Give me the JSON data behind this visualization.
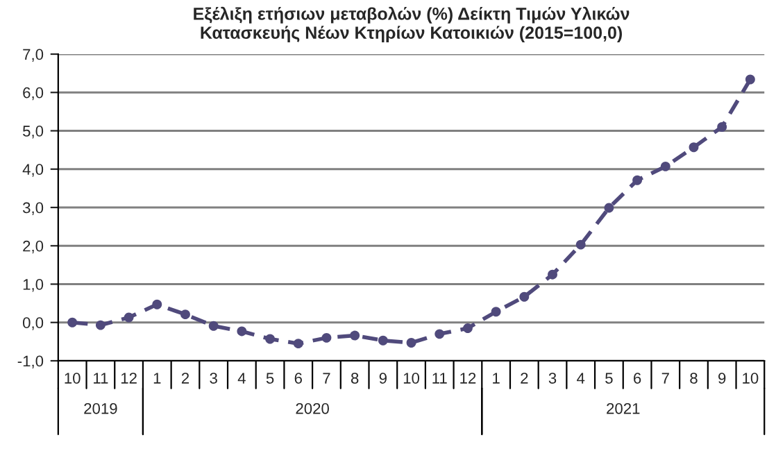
{
  "chart_data": {
    "type": "line",
    "title": "Εξέλιξη ετήσιων μεταβολών (%) Δείκτη Τιμών Υλικών\nΚατασκευής Νέων Κτηρίων Κατοικιών (2015=100,0)",
    "categories": [
      "10",
      "11",
      "12",
      "1",
      "2",
      "3",
      "4",
      "5",
      "6",
      "7",
      "8",
      "9",
      "10",
      "11",
      "12",
      "1",
      "2",
      "3",
      "4",
      "5",
      "6",
      "7",
      "8",
      "9",
      "10"
    ],
    "series": [
      {
        "color": "#504a7c",
        "values": [
          0.0,
          -0.07,
          0.13,
          0.47,
          0.21,
          -0.09,
          -0.23,
          -0.43,
          -0.55,
          -0.4,
          -0.34,
          -0.47,
          -0.53,
          -0.3,
          -0.15,
          0.28,
          0.67,
          1.25,
          2.03,
          2.99,
          3.71,
          4.07,
          4.57,
          5.1,
          6.34
        ]
      }
    ],
    "ylim": [
      -1,
      7
    ],
    "yticks": [
      {
        "value": -1,
        "label": "-1,0"
      },
      {
        "value": 0,
        "label": "0,0"
      },
      {
        "value": 1,
        "label": "1,0"
      },
      {
        "value": 2,
        "label": "2,0"
      },
      {
        "value": 3,
        "label": "3,0"
      },
      {
        "value": 4,
        "label": "4,0"
      },
      {
        "value": 5,
        "label": "5,0"
      },
      {
        "value": 6,
        "label": "6,0"
      },
      {
        "value": 7,
        "label": "7,0"
      }
    ],
    "grid": "y",
    "marker": "circle",
    "line_style": "dashed",
    "annotations": [
      "2019",
      "2020",
      "2021"
    ]
  }
}
